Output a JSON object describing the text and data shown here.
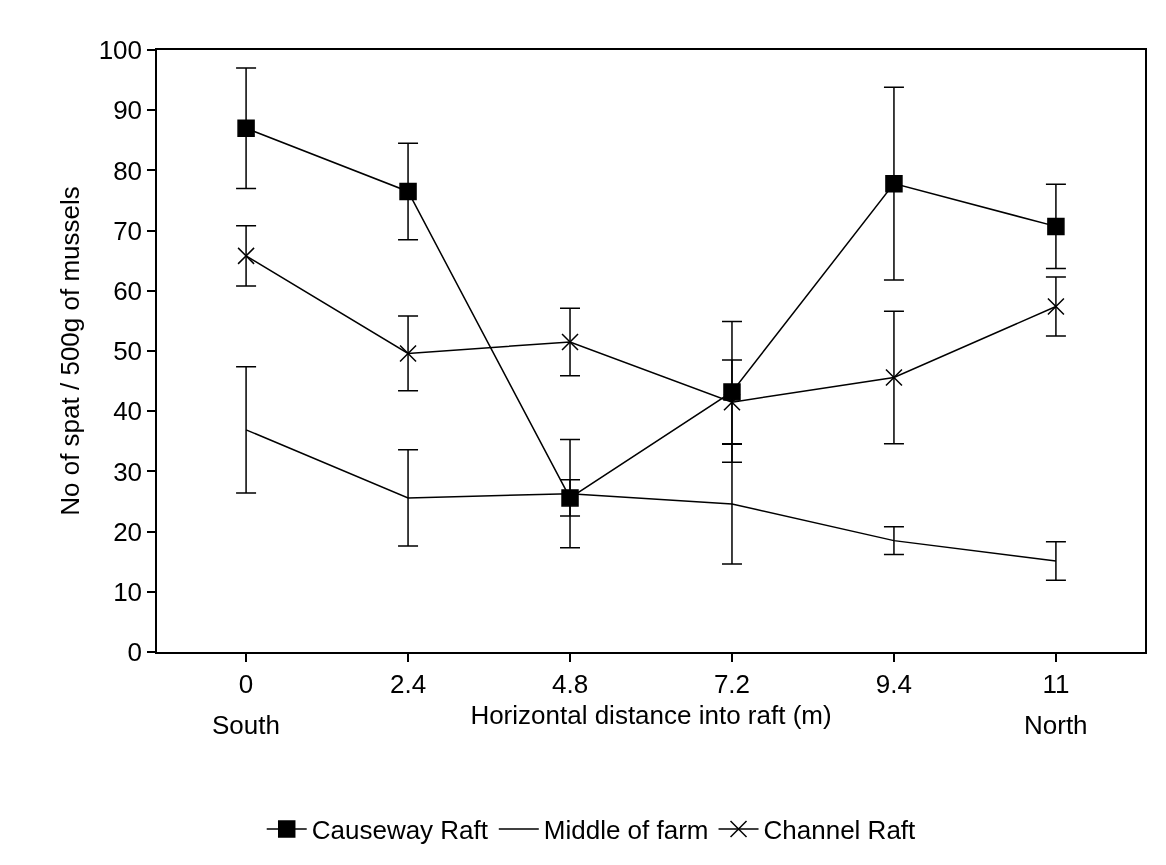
{
  "chart_data": {
    "type": "line",
    "xlabel": "Horizontal distance into raft (m)",
    "ylabel": "No of spat / 500g of mussels",
    "categories": [
      "0",
      "2.4",
      "4.8",
      "7.2",
      "9.4",
      "11"
    ],
    "series": [
      {
        "name": "Causeway Raft",
        "color": "#000000",
        "marker": "square",
        "values": [
          87,
          76.5,
          25.6,
          43.2,
          77.8,
          70.7
        ],
        "errors": [
          10,
          8,
          3,
          11.7,
          16,
          7
        ]
      },
      {
        "name": "Middle of farm",
        "color": "#000000",
        "marker": "none",
        "values": [
          36.9,
          25.6,
          26.3,
          24.6,
          18.5,
          15.1
        ],
        "errors": [
          10.5,
          8,
          9,
          10,
          2.3,
          3.2
        ]
      },
      {
        "name": "Channel Raft",
        "color": "#000000",
        "marker": "cross",
        "values": [
          65.8,
          49.6,
          51.5,
          41.5,
          45.6,
          57.4
        ],
        "errors": [
          5,
          6.2,
          5.6,
          7,
          11,
          4.9
        ]
      }
    ],
    "ylim": [
      0,
      100
    ],
    "yticks": [
      0,
      10,
      20,
      30,
      40,
      50,
      60,
      70,
      80,
      90,
      100
    ],
    "annotations": [
      "South",
      "North"
    ],
    "grid": false,
    "legend": "bottom",
    "line_style": "solid"
  }
}
